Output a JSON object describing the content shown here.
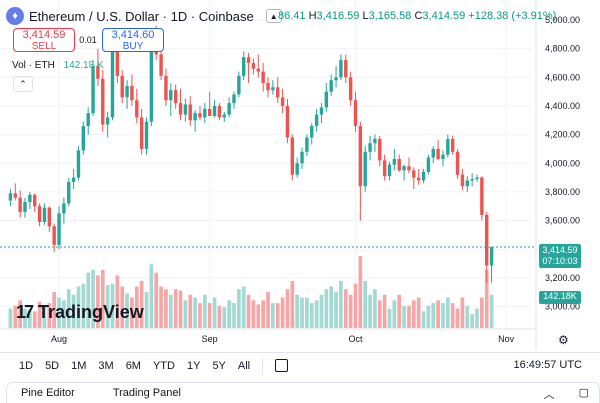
{
  "header": {
    "symbol_logo_icon": "ethereum-icon",
    "title": "Ethereum / U.S. Dollar · 1D · Coinbase",
    "ohlc": {
      "open_partial": "86.41",
      "h_label": "H",
      "high": "3,416.59",
      "l_label": "L",
      "low": "3,165.58",
      "c_label": "C",
      "close": "3,414.59",
      "change": "+128.38 (+3.91%)"
    }
  },
  "trade": {
    "sell_price": "3,414.59",
    "sell_label": "SELL",
    "spread": "0.01",
    "buy_price": "3,414.60",
    "buy_label": "BUY"
  },
  "volume_legend": {
    "label": "Vol · ETH",
    "value": "142.18 K"
  },
  "price_scale": {
    "current_price": "3,414.59",
    "countdown": "07:10:03",
    "volume_tag": "142.18K"
  },
  "branding": {
    "logo_text": "TradingView"
  },
  "toolbar": {
    "ranges": [
      "1D",
      "5D",
      "1M",
      "3M",
      "6M",
      "YTD",
      "1Y",
      "5Y",
      "All"
    ],
    "time": "16:49:57 UTC"
  },
  "panel": {
    "tabs": [
      "Pine Editor",
      "Trading Panel"
    ]
  },
  "colors": {
    "up": "#26a69a",
    "down": "#ef5350",
    "vol_up": "#a3d9d3",
    "vol_down": "#f5a7a7",
    "grid": "#f0f3fa"
  },
  "chart_data": {
    "type": "candlestick",
    "y_axis": {
      "ticks": [
        3000,
        3200,
        3400,
        3600,
        3800,
        4000,
        4200,
        4400,
        4600,
        4800,
        5000
      ],
      "tick_labels": [
        "3,000.00",
        "3,200.00",
        "3,400.00",
        "3,600.00",
        "3,800.00",
        "4,000.00",
        "4,200.00",
        "4,400.00",
        "4,600.00",
        "4,800.00",
        "5,000.00"
      ],
      "range": [
        2850,
        5000
      ]
    },
    "x_axis": {
      "labels": [
        "Aug",
        "Sep",
        "Oct",
        "Nov"
      ],
      "label_index": [
        10,
        41,
        71,
        102
      ]
    },
    "candles": [
      [
        3740,
        3820,
        3700,
        3790
      ],
      [
        3790,
        3860,
        3740,
        3760
      ],
      [
        3760,
        3810,
        3620,
        3660
      ],
      [
        3660,
        3760,
        3620,
        3730
      ],
      [
        3730,
        3800,
        3680,
        3780
      ],
      [
        3780,
        3790,
        3660,
        3700
      ],
      [
        3700,
        3720,
        3560,
        3590
      ],
      [
        3590,
        3720,
        3570,
        3690
      ],
      [
        3690,
        3700,
        3520,
        3560
      ],
      [
        3560,
        3580,
        3380,
        3430
      ],
      [
        3430,
        3700,
        3400,
        3650
      ],
      [
        3650,
        3760,
        3580,
        3720
      ],
      [
        3720,
        3900,
        3700,
        3870
      ],
      [
        3870,
        3960,
        3820,
        3900
      ],
      [
        3900,
        4120,
        3880,
        4090
      ],
      [
        4090,
        4290,
        4060,
        4260
      ],
      [
        4260,
        4390,
        4200,
        4350
      ],
      [
        4350,
        4720,
        4330,
        4680
      ],
      [
        4680,
        4800,
        4540,
        4590
      ],
      [
        4590,
        4650,
        4220,
        4270
      ],
      [
        4270,
        4360,
        4180,
        4320
      ],
      [
        4320,
        4820,
        4300,
        4780
      ],
      [
        4780,
        4830,
        4560,
        4610
      ],
      [
        4610,
        4650,
        4420,
        4460
      ],
      [
        4460,
        4580,
        4380,
        4540
      ],
      [
        4540,
        4620,
        4400,
        4440
      ],
      [
        4440,
        4520,
        4280,
        4320
      ],
      [
        4320,
        4380,
        4060,
        4100
      ],
      [
        4100,
        4320,
        4060,
        4290
      ],
      [
        4290,
        4940,
        4260,
        4830
      ],
      [
        4830,
        4960,
        4720,
        4760
      ],
      [
        4760,
        4800,
        4580,
        4610
      ],
      [
        4610,
        4660,
        4400,
        4440
      ],
      [
        4440,
        4560,
        4330,
        4510
      ],
      [
        4510,
        4550,
        4380,
        4420
      ],
      [
        4420,
        4520,
        4300,
        4340
      ],
      [
        4340,
        4450,
        4290,
        4410
      ],
      [
        4410,
        4470,
        4260,
        4300
      ],
      [
        4300,
        4370,
        4220,
        4350
      ],
      [
        4350,
        4400,
        4300,
        4320
      ],
      [
        4320,
        4420,
        4280,
        4380
      ],
      [
        4380,
        4500,
        4340,
        4330
      ],
      [
        4330,
        4440,
        4320,
        4400
      ],
      [
        4400,
        4420,
        4300,
        4320
      ],
      [
        4320,
        4360,
        4290,
        4340
      ],
      [
        4340,
        4460,
        4320,
        4420
      ],
      [
        4420,
        4500,
        4380,
        4480
      ],
      [
        4480,
        4640,
        4460,
        4610
      ],
      [
        4610,
        4780,
        4580,
        4740
      ],
      [
        4740,
        4770,
        4560,
        4700
      ],
      [
        4700,
        4730,
        4620,
        4660
      ],
      [
        4660,
        4760,
        4600,
        4640
      ],
      [
        4640,
        4700,
        4500,
        4560
      ],
      [
        4560,
        4600,
        4460,
        4510
      ],
      [
        4510,
        4580,
        4480,
        4530
      ],
      [
        4530,
        4600,
        4420,
        4460
      ],
      [
        4460,
        4520,
        4350,
        4400
      ],
      [
        4400,
        4450,
        4140,
        4180
      ],
      [
        4180,
        4200,
        3880,
        3920
      ],
      [
        3920,
        4040,
        3900,
        4000
      ],
      [
        4000,
        4110,
        3960,
        4080
      ],
      [
        4080,
        4200,
        4050,
        4180
      ],
      [
        4180,
        4280,
        4130,
        4260
      ],
      [
        4260,
        4380,
        4220,
        4340
      ],
      [
        4340,
        4420,
        4280,
        4390
      ],
      [
        4390,
        4560,
        4360,
        4500
      ],
      [
        4500,
        4620,
        4470,
        4580
      ],
      [
        4580,
        4680,
        4530,
        4600
      ],
      [
        4600,
        4760,
        4580,
        4720
      ],
      [
        4720,
        4760,
        4560,
        4600
      ],
      [
        4600,
        4640,
        4400,
        4440
      ],
      [
        4440,
        4500,
        4220,
        4260
      ],
      [
        4260,
        4290,
        3600,
        3840
      ],
      [
        3840,
        4120,
        3800,
        4080
      ],
      [
        4080,
        4190,
        4020,
        4140
      ],
      [
        4140,
        4200,
        4080,
        4170
      ],
      [
        4170,
        4190,
        3980,
        4020
      ],
      [
        4020,
        4060,
        3880,
        3910
      ],
      [
        3910,
        4010,
        3880,
        3990
      ],
      [
        3990,
        4100,
        3950,
        4030
      ],
      [
        4030,
        4060,
        3940,
        3950
      ],
      [
        3950,
        3990,
        3880,
        3980
      ],
      [
        3980,
        4040,
        3930,
        3950
      ],
      [
        3950,
        3970,
        3820,
        3900
      ],
      [
        3900,
        3960,
        3850,
        3880
      ],
      [
        3880,
        3960,
        3860,
        3940
      ],
      [
        3940,
        4060,
        3920,
        4040
      ],
      [
        4040,
        4120,
        4000,
        4100
      ],
      [
        4100,
        4160,
        4020,
        4030
      ],
      [
        4030,
        4090,
        3980,
        4060
      ],
      [
        4060,
        4200,
        4040,
        4170
      ],
      [
        4170,
        4190,
        4060,
        4080
      ],
      [
        4080,
        4100,
        3890,
        3920
      ],
      [
        3920,
        3960,
        3810,
        3840
      ],
      [
        3840,
        3910,
        3800,
        3880
      ],
      [
        3880,
        3930,
        3840,
        3890
      ],
      [
        3890,
        3920,
        3870,
        3900
      ],
      [
        3900,
        3910,
        3600,
        3640
      ],
      [
        3640,
        3660,
        3165,
        3286
      ],
      [
        3286,
        3417,
        3166,
        3415
      ]
    ],
    "volumes": [
      14,
      16,
      20,
      14,
      13,
      12,
      19,
      15,
      18,
      26,
      22,
      20,
      28,
      24,
      30,
      32,
      40,
      42,
      38,
      42,
      31,
      32,
      38,
      30,
      25,
      22,
      30,
      34,
      26,
      46,
      40,
      30,
      28,
      24,
      28,
      27,
      20,
      24,
      22,
      18,
      24,
      18,
      22,
      16,
      15,
      20,
      18,
      28,
      30,
      24,
      20,
      17,
      20,
      26,
      18,
      18,
      22,
      28,
      34,
      24,
      22,
      22,
      18,
      20,
      24,
      28,
      30,
      26,
      34,
      28,
      24,
      32,
      52,
      34,
      24,
      28,
      20,
      24,
      14,
      20,
      24,
      16,
      16,
      20,
      22,
      12,
      16,
      18,
      20,
      18,
      22,
      18,
      14,
      22,
      16,
      10,
      14,
      22,
      42,
      24
    ]
  }
}
